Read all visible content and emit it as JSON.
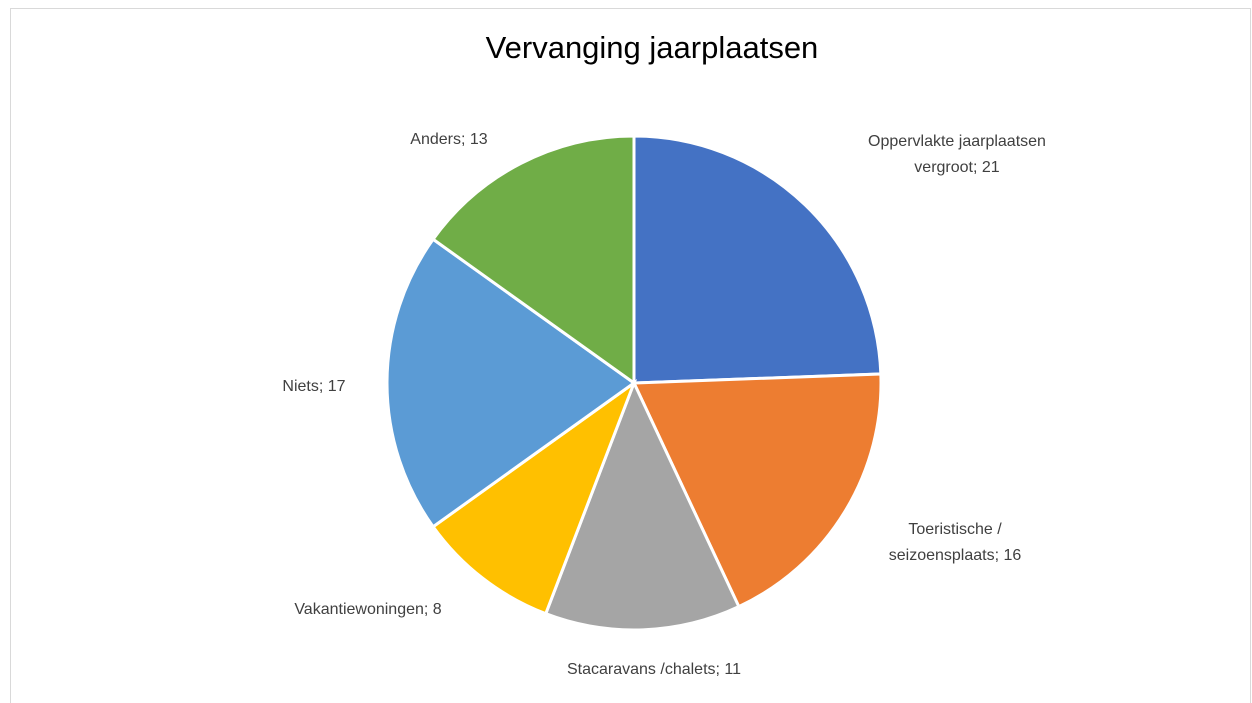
{
  "chart_data": {
    "type": "pie",
    "title": "Vervanging jaarplaatsen",
    "categories": [
      "Oppervlakte jaarplaatsen vergroot",
      "Toeristische / seizoensplaats",
      "Stacaravans /chalets",
      "Vakantiewoningen",
      "Niets",
      "Anders"
    ],
    "values": [
      21,
      16,
      11,
      8,
      17,
      13
    ],
    "value_labels": [
      "Oppervlakte jaarplaatsen vergroot; 21",
      "Toeristische / seizoensplaats; 16",
      "Stacaravans /chalets; 11",
      "Vakantiewoningen; 8",
      "Niets; 17",
      "Anders; 13"
    ],
    "colors": [
      "#4472c4",
      "#ed7d31",
      "#a5a5a5",
      "#ffc000",
      "#5b9bd5",
      "#70ad47"
    ]
  }
}
